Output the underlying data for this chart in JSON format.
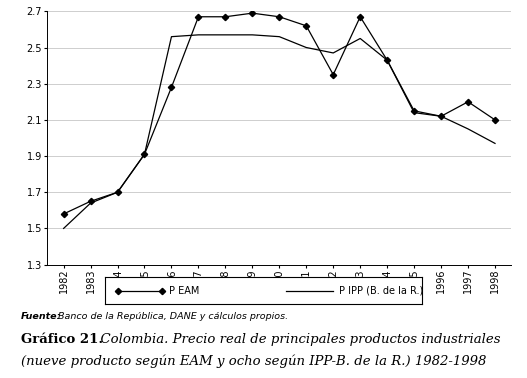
{
  "years": [
    1982,
    1983,
    1984,
    1985,
    1986,
    1987,
    1988,
    1989,
    1990,
    1991,
    1992,
    1993,
    1994,
    1995,
    1996,
    1997,
    1998
  ],
  "p_eam": [
    1.58,
    1.65,
    1.7,
    1.91,
    2.28,
    2.67,
    2.67,
    2.69,
    2.67,
    2.62,
    2.35,
    2.67,
    2.43,
    2.15,
    2.12,
    2.2,
    2.1
  ],
  "p_ipp": [
    1.5,
    1.64,
    1.7,
    1.91,
    2.56,
    2.57,
    2.57,
    2.57,
    2.56,
    2.5,
    2.47,
    2.55,
    2.43,
    2.14,
    2.12,
    2.05,
    1.97
  ],
  "ylim": [
    1.3,
    2.7
  ],
  "yticks": [
    1.3,
    1.5,
    1.7,
    1.9,
    2.1,
    2.3,
    2.5,
    2.7
  ],
  "line_color": "#000000",
  "marker_color": "#000000",
  "background_color": "#ffffff",
  "grid_color": "#bbbbbb",
  "legend_label_eam": "P EAM",
  "legend_label_ipp": "P IPP (B. de la R.)",
  "source_label_bold": "Fuente:",
  "source_label_rest": " Banco de la República, DANE y cálculos propios.",
  "title_bold": "Gráfico 21.",
  "title_italic": "  Colombia. Precio real de principales productos industriales",
  "title_italic2": "(nueve producto según EAM y ocho según IPP-B. de la R.) 1982-1998"
}
